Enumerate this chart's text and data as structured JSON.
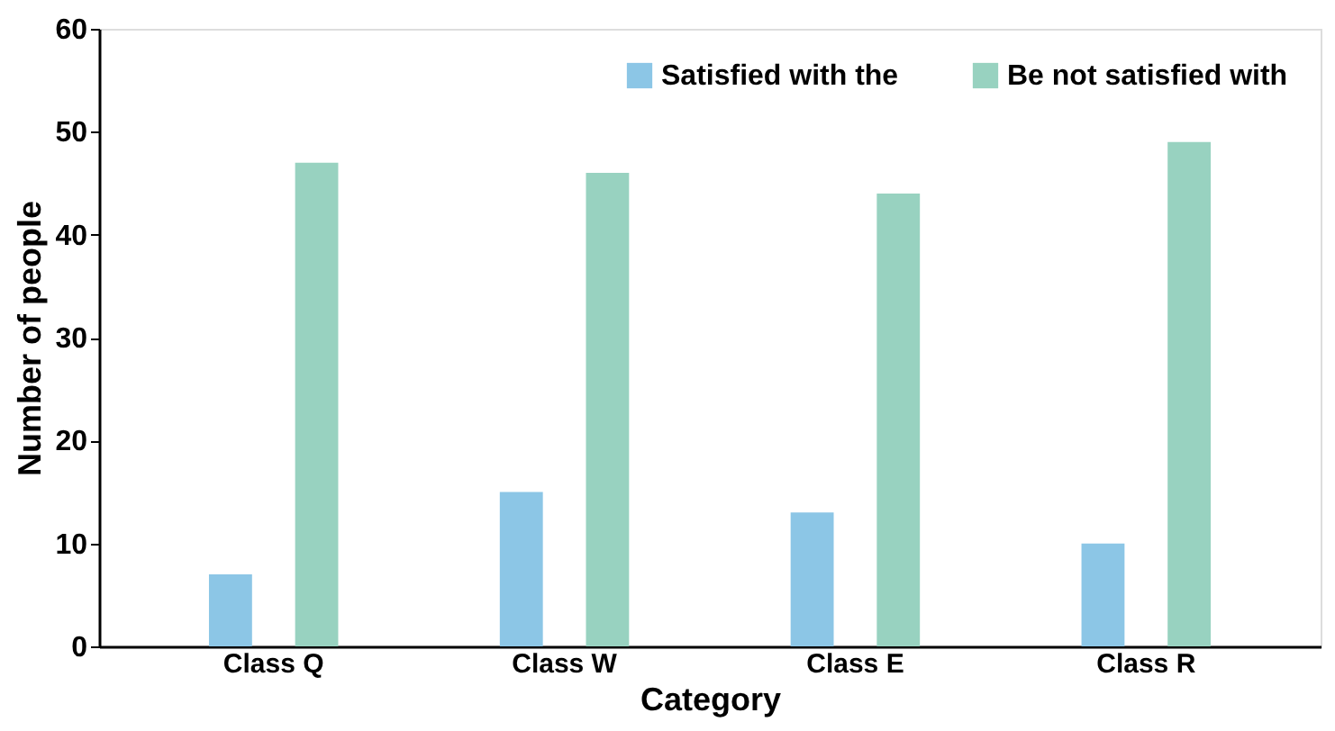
{
  "chart_data": {
    "type": "bar",
    "xlabel": "Category",
    "ylabel": "Number of people",
    "categories": [
      "Class Q",
      "Class W",
      "Class E",
      "Class R"
    ],
    "series": [
      {
        "name": "Satisfied with the",
        "color": "#8cc6e6",
        "values": [
          7,
          15,
          13,
          10
        ]
      },
      {
        "name": "Be not satisfied with",
        "color": "#98d2c0",
        "values": [
          47,
          46,
          44,
          49
        ]
      }
    ],
    "ylim": [
      0,
      60
    ],
    "yticks": [
      0,
      10,
      20,
      30,
      40,
      50,
      60
    ],
    "grid": false,
    "legend": "top right"
  }
}
